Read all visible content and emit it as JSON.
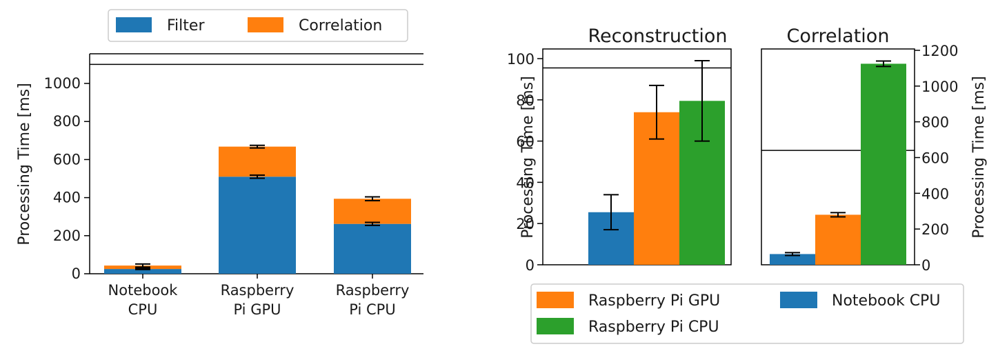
{
  "chart_data": [
    {
      "type": "bar",
      "stacked": true,
      "categories": [
        "Notebook CPU",
        "Raspberry Pi GPU",
        "Raspberry Pi CPU"
      ],
      "category_lines": [
        [
          "Notebook",
          "CPU"
        ],
        [
          "Raspberry",
          "Pi GPU"
        ],
        [
          "Raspberry",
          "Pi CPU"
        ]
      ],
      "series": [
        {
          "name": "Filter",
          "color": "#1f77b4",
          "values": [
            25,
            510,
            262
          ],
          "errors": [
            3,
            8,
            8
          ]
        },
        {
          "name": "Correlation",
          "color": "#ff7f0e",
          "values": [
            18,
            158,
            132
          ],
          "errors": [
            8,
            7,
            10
          ]
        }
      ],
      "ylabel": "Processing Time [ms]",
      "yticks": [
        0,
        200,
        400,
        600,
        800,
        1000
      ],
      "ylim": [
        0,
        1150
      ],
      "reference_line": 1100,
      "legend_position": "top",
      "grid": false
    },
    {
      "type": "bar",
      "title": "Reconstruction",
      "categories": [
        "Notebook CPU",
        "Raspberry Pi GPU",
        "Raspberry Pi CPU"
      ],
      "values": [
        25.5,
        74,
        79.5
      ],
      "errors": [
        8.5,
        13,
        19.5
      ],
      "colors": [
        "#1f77b4",
        "#ff7f0e",
        "#2ca02c"
      ],
      "ylabel": "Processing Time [ms]",
      "yticks": [
        0,
        20,
        40,
        60,
        80,
        100
      ],
      "ylim": [
        0,
        104
      ],
      "reference_line": 95.5,
      "grid": false
    },
    {
      "type": "bar",
      "title": "Correlation",
      "categories": [
        "Notebook CPU",
        "Raspberry Pi GPU",
        "Raspberry Pi CPU"
      ],
      "values": [
        60,
        280,
        1125
      ],
      "errors": [
        8,
        12,
        15
      ],
      "colors": [
        "#1f77b4",
        "#ff7f0e",
        "#2ca02c"
      ],
      "ylabel": "Processing Time [ms]",
      "yaxis_side": "right",
      "yticks": [
        0,
        200,
        400,
        600,
        800,
        1000,
        1200
      ],
      "ylim": [
        0,
        1200
      ],
      "reference_line": 640,
      "grid": false
    }
  ],
  "legend_right": [
    {
      "name": "Raspberry Pi GPU",
      "color": "#ff7f0e"
    },
    {
      "name": "Notebook CPU",
      "color": "#1f77b4"
    },
    {
      "name": "Raspberry Pi CPU",
      "color": "#2ca02c"
    }
  ]
}
